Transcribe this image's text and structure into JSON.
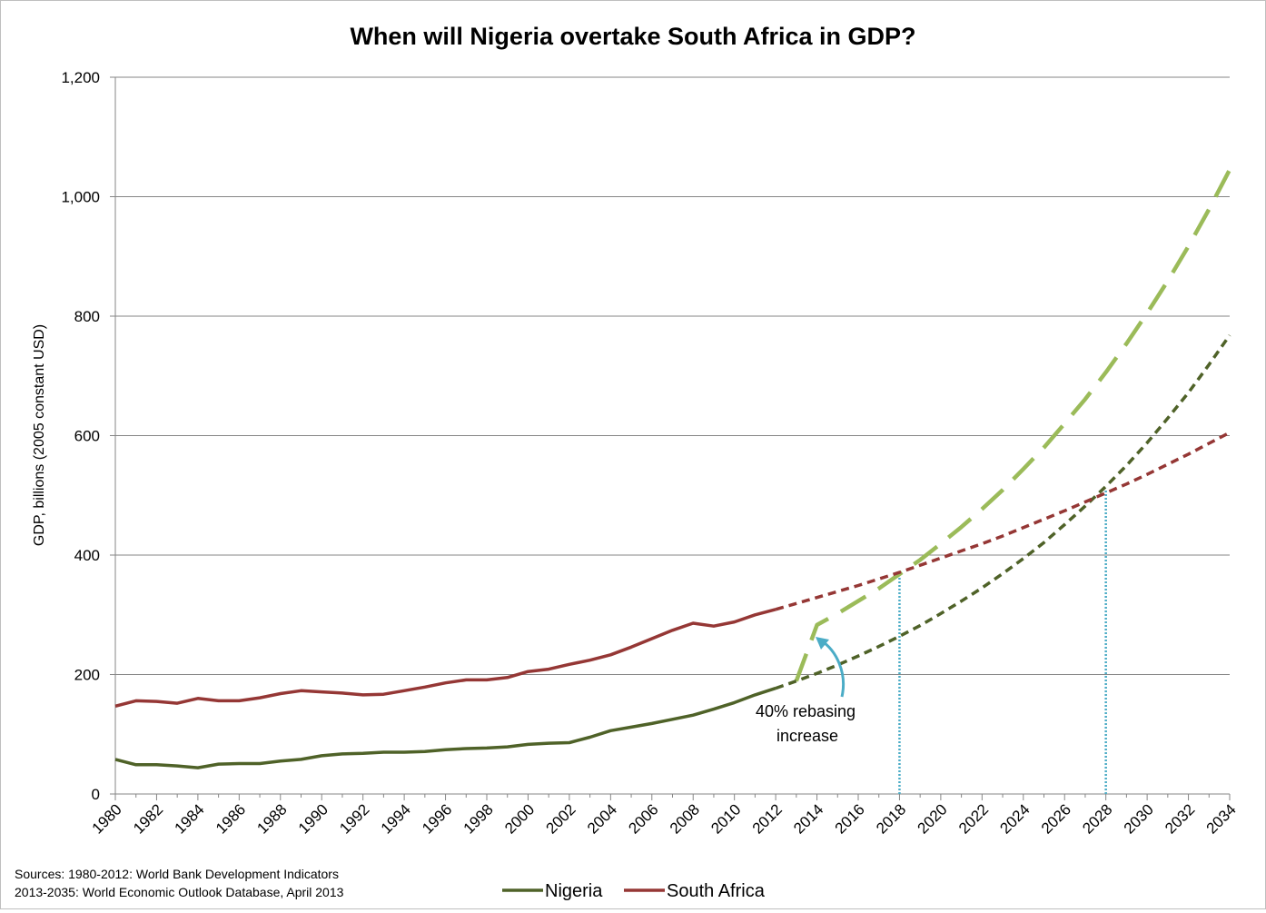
{
  "chart_data": {
    "type": "line",
    "title": "When will Nigeria overtake South Africa in GDP?",
    "ylabel": "GDP, billions (2005 constant USD)",
    "xlabel": "",
    "xlim": [
      1980,
      2034
    ],
    "ylim": [
      0,
      1200
    ],
    "y_ticks": [
      0,
      200,
      400,
      600,
      800,
      1000,
      1200
    ],
    "y_tick_labels": [
      "0",
      "200",
      "400",
      "600",
      "800",
      "1,000",
      "1,200"
    ],
    "x_tick_labels": [
      "1980",
      "1982",
      "1984",
      "1986",
      "1988",
      "1990",
      "1992",
      "1994",
      "1996",
      "1998",
      "2000",
      "2002",
      "2004",
      "2006",
      "2008",
      "2010",
      "2012",
      "2014",
      "2016",
      "2018",
      "2020",
      "2022",
      "2024",
      "2026",
      "2028",
      "2030",
      "2032",
      "2034"
    ],
    "grid": "horizontal",
    "legend_position": "bottom",
    "colors": {
      "nigeria": "#4F6228",
      "south_africa": "#953735",
      "rebased": "#9BBB59",
      "marker_lines": "#4BACC6"
    },
    "series": [
      {
        "name": "Nigeria",
        "style": "solid",
        "x": [
          1980,
          1981,
          1982,
          1983,
          1984,
          1985,
          1986,
          1987,
          1988,
          1989,
          1990,
          1991,
          1992,
          1993,
          1994,
          1995,
          1996,
          1997,
          1998,
          1999,
          2000,
          2001,
          2002,
          2003,
          2004,
          2005,
          2006,
          2007,
          2008,
          2009,
          2010,
          2011,
          2012
        ],
        "values": [
          58,
          49,
          49,
          47,
          44,
          50,
          51,
          51,
          55,
          58,
          64,
          67,
          68,
          70,
          70,
          71,
          74,
          76,
          77,
          79,
          83,
          85,
          86,
          95,
          106,
          112,
          118,
          125,
          132,
          142,
          153,
          166,
          177
        ]
      },
      {
        "name": "South Africa",
        "style": "solid",
        "x": [
          1980,
          1981,
          1982,
          1983,
          1984,
          1985,
          1986,
          1987,
          1988,
          1989,
          1990,
          1991,
          1992,
          1993,
          1994,
          1995,
          1996,
          1997,
          1998,
          1999,
          2000,
          2001,
          2002,
          2003,
          2004,
          2005,
          2006,
          2007,
          2008,
          2009,
          2010,
          2011,
          2012
        ],
        "values": [
          147,
          156,
          155,
          152,
          160,
          156,
          156,
          161,
          168,
          173,
          171,
          169,
          166,
          167,
          173,
          179,
          186,
          191,
          191,
          195,
          205,
          209,
          217,
          224,
          233,
          246,
          260,
          274,
          286,
          281,
          288,
          300,
          309
        ]
      },
      {
        "style": "dashed",
        "of": "Nigeria",
        "x": [
          2012,
          2013,
          2014,
          2015,
          2016,
          2017,
          2018,
          2019,
          2020,
          2021,
          2022,
          2023,
          2024,
          2025,
          2026,
          2027,
          2028,
          2029,
          2030,
          2031,
          2032,
          2033,
          2034
        ],
        "values": [
          177,
          189,
          202,
          216,
          231,
          247,
          264,
          282,
          302,
          323,
          345,
          369,
          394,
          421,
          451,
          482,
          515,
          550,
          588,
          629,
          672,
          719,
          768
        ]
      },
      {
        "style": "dashed",
        "of": "South Africa",
        "x": [
          2012,
          2013,
          2014,
          2015,
          2016,
          2017,
          2018,
          2019,
          2020,
          2021,
          2022,
          2023,
          2024,
          2025,
          2026,
          2027,
          2028,
          2029,
          2030,
          2031,
          2032,
          2033,
          2034
        ],
        "values": [
          309,
          319,
          329,
          339,
          349,
          360,
          371,
          383,
          395,
          407,
          419,
          432,
          446,
          460,
          474,
          489,
          504,
          519,
          535,
          552,
          569,
          587,
          605
        ]
      },
      {
        "style": "long-dashed",
        "of": "Nigeria rebased",
        "x": [
          2013,
          2014,
          2015,
          2016,
          2017,
          2018,
          2019,
          2020,
          2021,
          2022,
          2023,
          2024,
          2025,
          2026,
          2027,
          2028,
          2029,
          2030,
          2031,
          2032,
          2033,
          2034
        ],
        "values": [
          189,
          283,
          302,
          323,
          344,
          368,
          392,
          419,
          447,
          477,
          509,
          544,
          580,
          620,
          661,
          706,
          754,
          805,
          859,
          917,
          979,
          1045
        ]
      }
    ],
    "crossover_markers": [
      {
        "x": 2018,
        "y": 371
      },
      {
        "x": 2028,
        "y": 510
      }
    ],
    "annotation": {
      "lines": [
        "40% rebasing",
        "increase"
      ]
    },
    "legend": [
      "Nigeria",
      "South Africa"
    ]
  },
  "sources": [
    "Sources: 1980-2012: World Bank Development Indicators",
    "2013-2035: World Economic Outlook Database, April 2013"
  ]
}
